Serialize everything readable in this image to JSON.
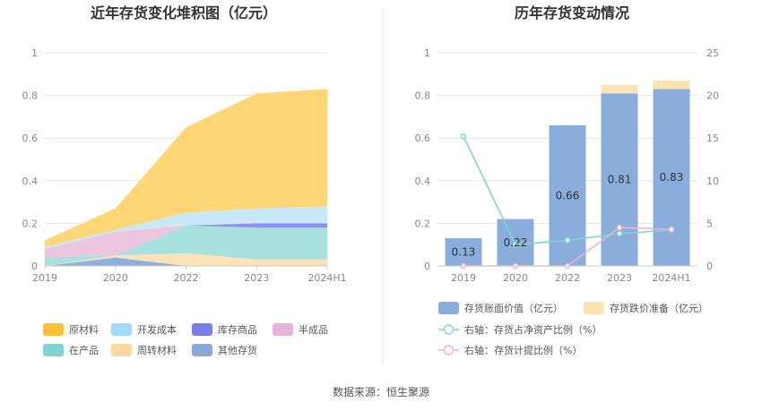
{
  "source": "数据来源：恒生聚源",
  "chart_data": [
    {
      "type": "area",
      "stacked": true,
      "title": "近年存货变化堆积图（亿元）",
      "categories": [
        "2019",
        "2020",
        "2022",
        "2023",
        "2024H1"
      ],
      "yticks": [
        "0",
        "0.2",
        "0.4",
        "0.6",
        "0.8",
        "1"
      ],
      "ylim": [
        0,
        1
      ],
      "grid": true,
      "legend": "bottom",
      "series": [
        {
          "name": "其他存货",
          "color": "#8fb0dc",
          "values": [
            0.0,
            0.04,
            0.0,
            0.0,
            0.0
          ]
        },
        {
          "name": "周转材料",
          "color": "#fde2b8",
          "values": [
            0.0,
            0.01,
            0.06,
            0.03,
            0.03
          ]
        },
        {
          "name": "在产品",
          "color": "#a8e0df",
          "values": [
            0.04,
            0.0,
            0.13,
            0.15,
            0.15
          ]
        },
        {
          "name": "半成品",
          "color": "#ecc6df",
          "values": [
            0.04,
            0.11,
            0.0,
            0.0,
            0.0
          ]
        },
        {
          "name": "库存商品",
          "color": "#8f8ef0",
          "values": [
            0.0,
            0.0,
            0.0,
            0.02,
            0.02
          ]
        },
        {
          "name": "开发成本",
          "color": "#c8e7f8",
          "values": [
            0.01,
            0.01,
            0.06,
            0.07,
            0.08
          ]
        },
        {
          "name": "原材料",
          "color": "#fed675",
          "values": [
            0.03,
            0.1,
            0.4,
            0.54,
            0.55
          ]
        }
      ],
      "legend_order": [
        "原材料",
        "开发成本",
        "库存商品",
        "半成品",
        "在产品",
        "周转材料",
        "其他存货"
      ],
      "legend_colors": {
        "原材料": "#fcbf3c",
        "开发成本": "#a3d9f8",
        "库存商品": "#7b7de8",
        "半成品": "#e9b3d8",
        "在产品": "#7fd4d2",
        "周转材料": "#fdd8a0",
        "其他存货": "#8aa8d8"
      }
    },
    {
      "type": "bar",
      "stacked": true,
      "title": "历年存货变动情况",
      "categories": [
        "2019",
        "2020",
        "2022",
        "2023",
        "2024H1"
      ],
      "yticks_left": [
        "0",
        "0.2",
        "0.4",
        "0.6",
        "0.8",
        "1"
      ],
      "yticks_right": [
        "0",
        "5",
        "10",
        "15",
        "20",
        "25"
      ],
      "ylim_left": [
        0,
        1
      ],
      "ylim_right": [
        0,
        25
      ],
      "grid": true,
      "legend": "bottom",
      "bars": [
        {
          "name": "存货账面价值（亿元）",
          "color": "#8aaddb",
          "values": [
            0.13,
            0.22,
            0.66,
            0.81,
            0.83
          ],
          "labels": [
            "0.13",
            "0.22",
            "0.66",
            "0.81",
            "0.83"
          ]
        },
        {
          "name": "存货跌价准备（亿元）",
          "color": "#fde3b4",
          "values": [
            0.0,
            0.0,
            0.0,
            0.04,
            0.04
          ]
        }
      ],
      "lines": [
        {
          "name": "右轴：存货占净资产比例（%）",
          "color": "#7fd4d2",
          "axis": "right",
          "values": [
            15.2,
            2.5,
            3.0,
            3.8,
            4.2
          ]
        },
        {
          "name": "右轴：存货计提比例（%）",
          "color": "#e9b3d8",
          "axis": "right",
          "values": [
            0.0,
            0.0,
            0.0,
            4.5,
            4.3
          ]
        }
      ]
    }
  ]
}
